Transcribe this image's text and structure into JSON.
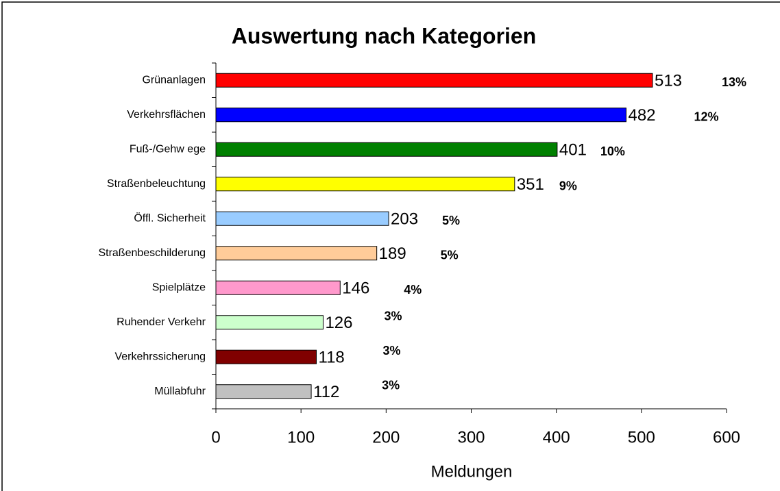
{
  "chart_data": {
    "type": "bar",
    "orientation": "horizontal",
    "title": "Auswertung nach Kategorien",
    "x_label": "Meldungen",
    "categories": [
      "Grünanlagen",
      "Verkehrsflächen",
      "Fuß-/Gehw ege",
      "Straßenbeleuchtung",
      "Öffl. Sicherheit",
      "Straßenbeschilderung",
      "Spielplätze",
      "Ruhender Verkehr",
      "Verkehrssicherung",
      "Müllabfuhr"
    ],
    "values": [
      513,
      482,
      401,
      351,
      203,
      189,
      146,
      126,
      118,
      112
    ],
    "colors": [
      "#ff0000",
      "#0000ff",
      "#008000",
      "#ffff00",
      "#99ccff",
      "#ffcc99",
      "#ff99cc",
      "#ccffcc",
      "#800000",
      "#c0c0c0"
    ],
    "share_labels": [
      "13%",
      "12%",
      "10%",
      "9%",
      "5%",
      "5%",
      "4%",
      "3%",
      "3%",
      "3%"
    ],
    "xlim": [
      0,
      600
    ],
    "xticks": [
      0,
      100,
      200,
      300,
      400,
      500,
      600
    ]
  }
}
